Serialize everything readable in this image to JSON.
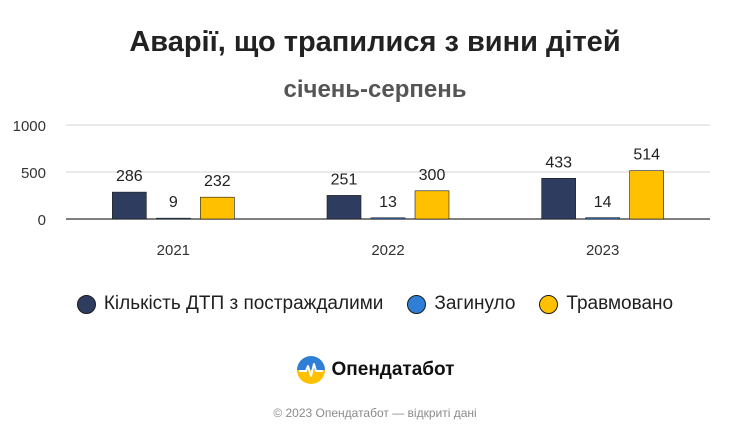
{
  "chart_data": {
    "type": "bar",
    "title": "Аварії, що трапилися з вини дітей",
    "subtitle": "січень-серпень",
    "categories": [
      "2021",
      "2022",
      "2023"
    ],
    "series": [
      {
        "name": "Кількість ДТП з постраждалими",
        "values": [
          286,
          251,
          433
        ],
        "color": "#2e3d5f"
      },
      {
        "name": "Загинуло",
        "values": [
          9,
          13,
          14
        ],
        "color": "#2f7fd6"
      },
      {
        "name": "Травмовано",
        "values": [
          232,
          300,
          514
        ],
        "color": "#ffc000"
      }
    ],
    "y_ticks": [
      "1000",
      "500",
      "0"
    ],
    "ylim": [
      0,
      1000
    ],
    "grid": true,
    "legend_position": "bottom"
  },
  "brand": {
    "name": "Опендатабот",
    "logo_icon": "opendatabot-logo-icon"
  },
  "footer": {
    "text": "© 2023 Опендатабот — відкриті дані"
  }
}
